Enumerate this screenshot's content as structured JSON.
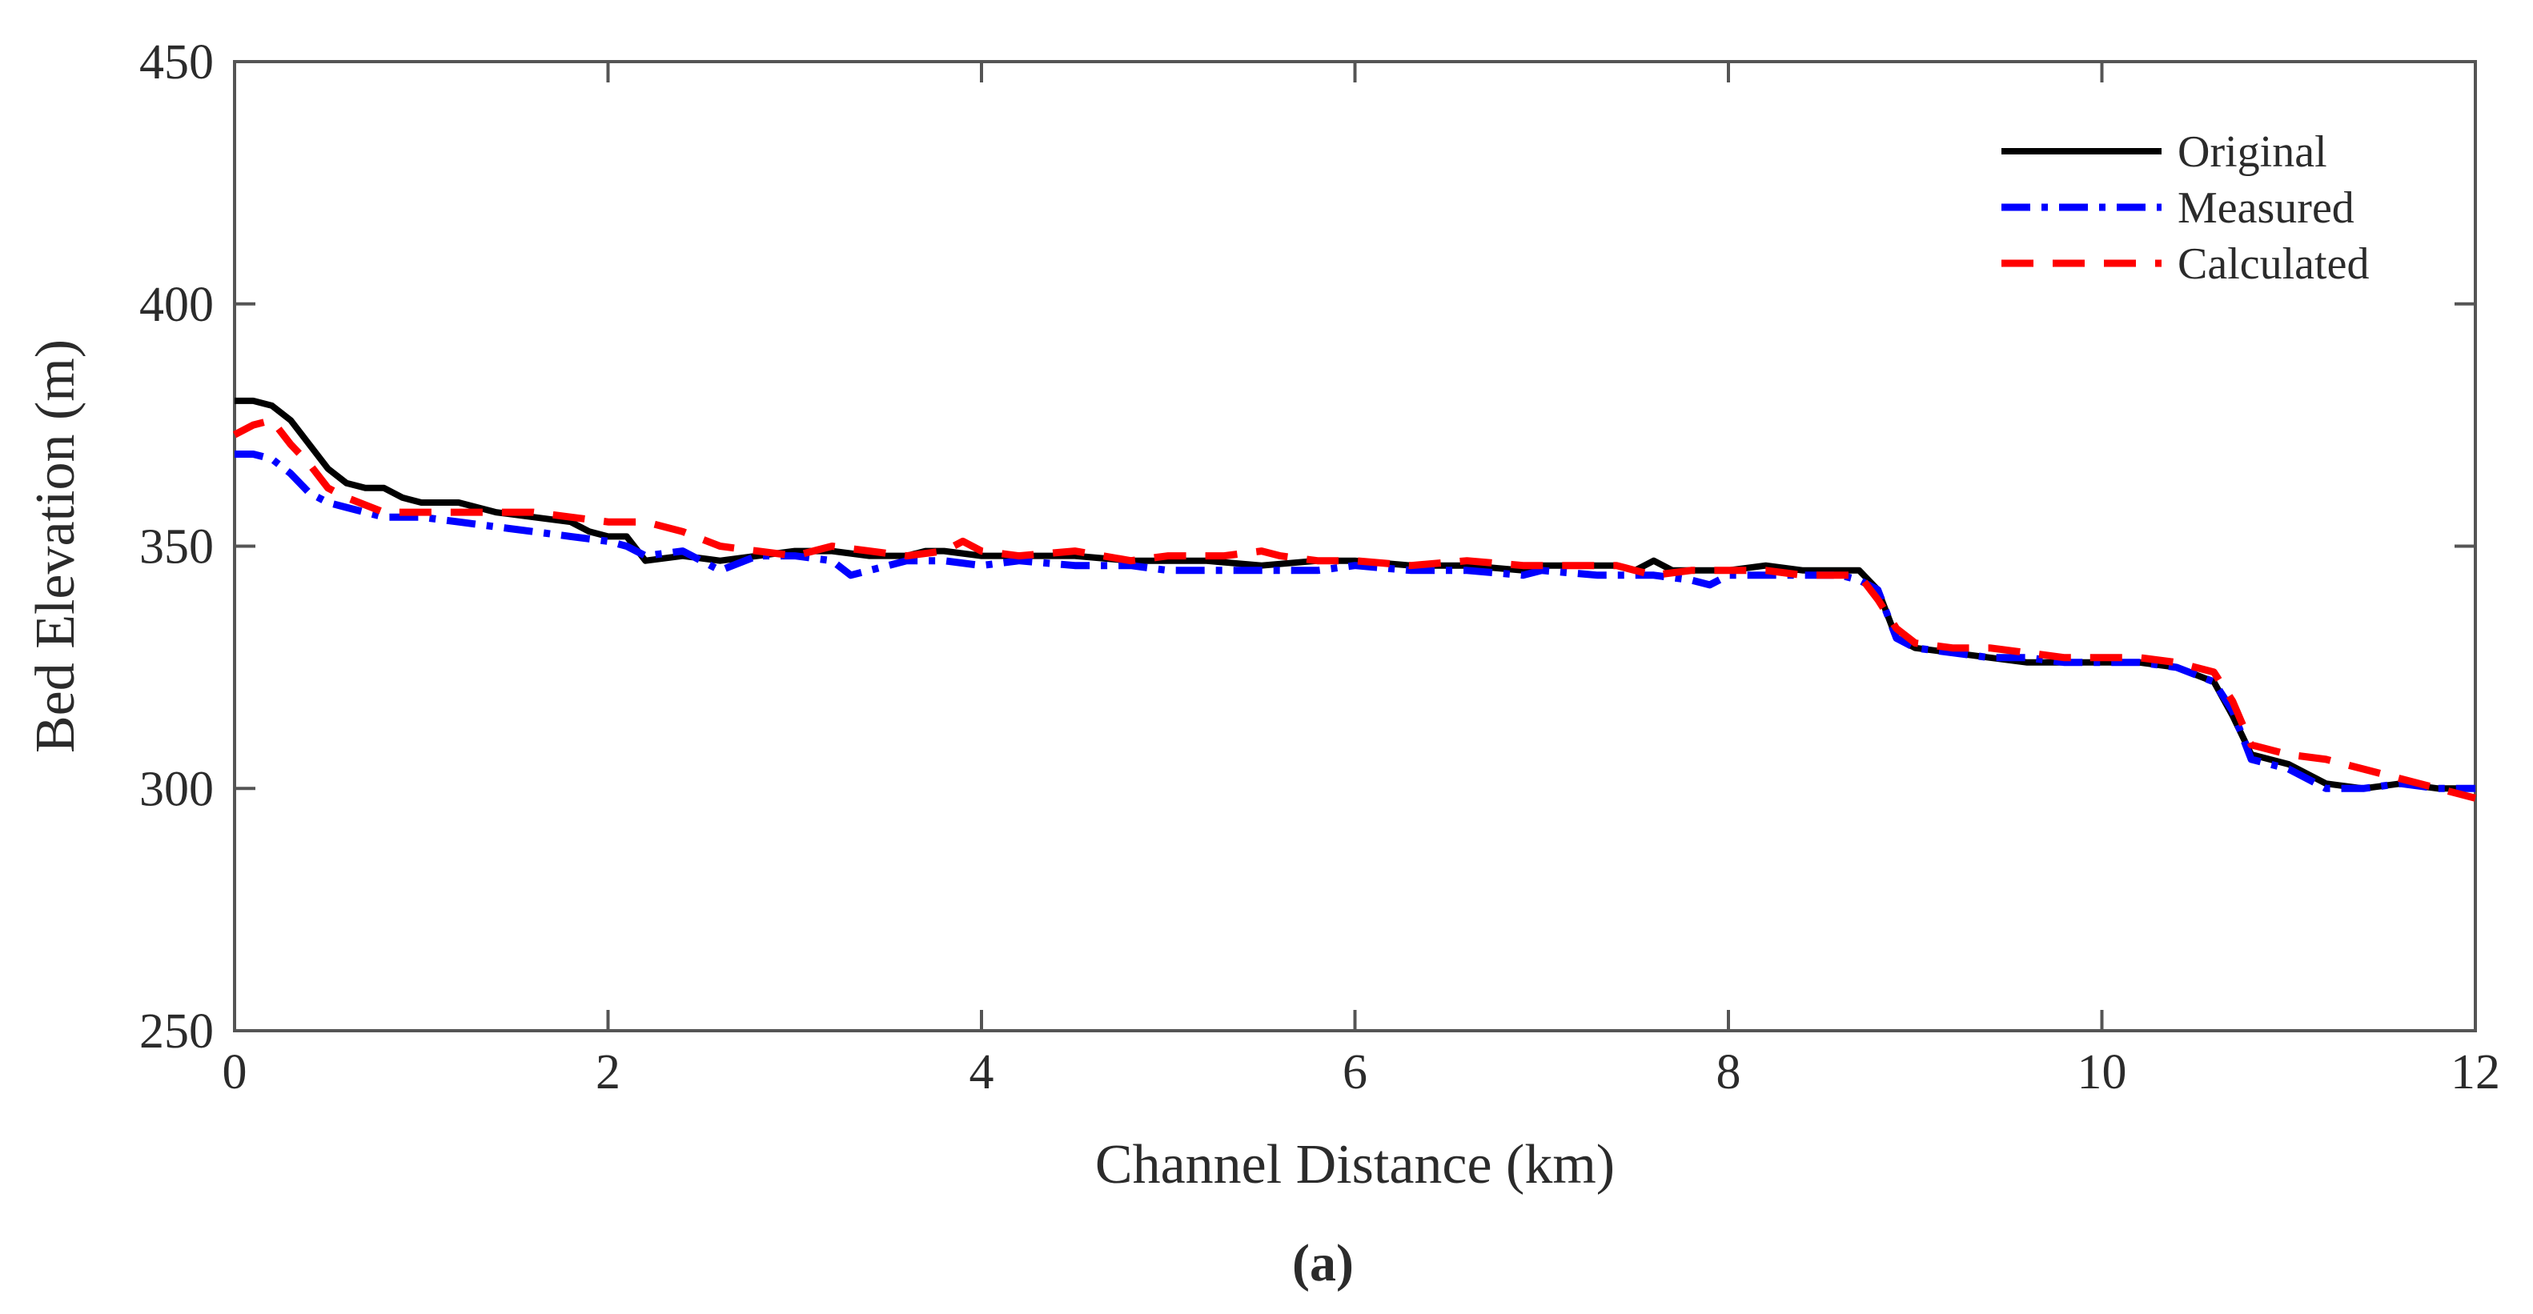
{
  "chart_data": {
    "type": "line",
    "title": "",
    "xlabel": "Channel Distance (km)",
    "ylabel": "Bed Elevation (m)",
    "xlim": [
      0,
      12
    ],
    "ylim": [
      250,
      450
    ],
    "xticks": [
      0,
      2,
      4,
      6,
      8,
      10,
      12
    ],
    "yticks": [
      250,
      300,
      350,
      400,
      450
    ],
    "xtick_labels": [
      "0",
      "2",
      "4",
      "6",
      "8",
      "10",
      "12"
    ],
    "ytick_labels": [
      "250",
      "300",
      "350",
      "400",
      "450"
    ],
    "grid": false,
    "legend_position": "top-right",
    "panel_label": "(a)",
    "series": [
      {
        "name": "Original",
        "color": "#000000",
        "style": "solid",
        "x": [
          0,
          0.1,
          0.2,
          0.3,
          0.4,
          0.5,
          0.6,
          0.7,
          0.8,
          0.9,
          1.0,
          1.2,
          1.4,
          1.6,
          1.8,
          1.9,
          2.0,
          2.1,
          2.2,
          2.4,
          2.6,
          2.8,
          3.0,
          3.2,
          3.4,
          3.6,
          3.7,
          3.8,
          4.0,
          4.2,
          4.5,
          4.8,
          5.0,
          5.2,
          5.5,
          5.8,
          6.0,
          6.3,
          6.6,
          6.9,
          7.0,
          7.2,
          7.4,
          7.5,
          7.6,
          7.7,
          7.8,
          8.0,
          8.2,
          8.4,
          8.6,
          8.7,
          8.8,
          8.9,
          9.0,
          9.2,
          9.4,
          9.6,
          9.8,
          10.0,
          10.2,
          10.4,
          10.6,
          10.7,
          10.8,
          11.0,
          11.2,
          11.4,
          11.6,
          11.8,
          12.0
        ],
        "y": [
          380,
          380,
          379,
          376,
          371,
          366,
          363,
          362,
          362,
          360,
          359,
          359,
          357,
          356,
          355,
          353,
          352,
          352,
          347,
          348,
          347,
          348,
          349,
          349,
          348,
          348,
          349,
          349,
          348,
          348,
          348,
          347,
          347,
          347,
          346,
          347,
          347,
          346,
          346,
          345,
          346,
          346,
          346,
          345,
          347,
          345,
          345,
          345,
          346,
          345,
          345,
          345,
          341,
          331,
          329,
          328,
          327,
          326,
          326,
          326,
          326,
          325,
          322,
          315,
          307,
          305,
          301,
          300,
          301,
          300,
          300
        ]
      },
      {
        "name": "Measured",
        "color": "#0000ff",
        "style": "dashdot",
        "x": [
          0,
          0.1,
          0.2,
          0.3,
          0.4,
          0.5,
          0.6,
          0.8,
          1.0,
          1.2,
          1.4,
          1.6,
          1.8,
          2.0,
          2.1,
          2.2,
          2.4,
          2.5,
          2.6,
          2.8,
          3.0,
          3.2,
          3.3,
          3.4,
          3.6,
          3.8,
          4.0,
          4.2,
          4.5,
          4.8,
          5.0,
          5.3,
          5.6,
          5.8,
          6.0,
          6.3,
          6.6,
          6.9,
          7.0,
          7.3,
          7.6,
          7.8,
          7.9,
          8.0,
          8.2,
          8.4,
          8.6,
          8.7,
          8.8,
          8.9,
          9.0,
          9.2,
          9.4,
          9.6,
          9.8,
          10.0,
          10.2,
          10.4,
          10.6,
          10.7,
          10.8,
          11.0,
          11.2,
          11.4,
          11.6,
          11.8,
          12.0
        ],
        "y": [
          369,
          369,
          368,
          365,
          361,
          359,
          358,
          356,
          356,
          355,
          354,
          353,
          352,
          351,
          350,
          348,
          349,
          347,
          345,
          348,
          348,
          347,
          344,
          345,
          347,
          347,
          346,
          347,
          346,
          346,
          345,
          345,
          345,
          345,
          346,
          345,
          345,
          344,
          345,
          344,
          344,
          343,
          342,
          344,
          344,
          344,
          344,
          343,
          341,
          331,
          329,
          328,
          327,
          327,
          326,
          326,
          326,
          325,
          322,
          316,
          306,
          304,
          300,
          300,
          301,
          300,
          300
        ]
      },
      {
        "name": "Calculated",
        "color": "#ff0000",
        "style": "dashed",
        "x": [
          0,
          0.1,
          0.2,
          0.3,
          0.4,
          0.5,
          0.6,
          0.8,
          1.0,
          1.2,
          1.4,
          1.6,
          1.8,
          2.0,
          2.2,
          2.4,
          2.6,
          2.8,
          3.0,
          3.2,
          3.4,
          3.6,
          3.8,
          3.9,
          4.0,
          4.2,
          4.5,
          4.8,
          5.0,
          5.3,
          5.5,
          5.6,
          5.8,
          6.0,
          6.3,
          6.6,
          6.9,
          7.0,
          7.2,
          7.4,
          7.5,
          7.6,
          7.8,
          8.0,
          8.2,
          8.4,
          8.6,
          8.7,
          8.8,
          8.9,
          9.0,
          9.2,
          9.4,
          9.6,
          9.8,
          10.0,
          10.2,
          10.4,
          10.6,
          10.7,
          10.8,
          11.0,
          11.2,
          11.4,
          11.6,
          11.8,
          12.0
        ],
        "y": [
          373,
          375,
          376,
          371,
          367,
          362,
          360,
          357,
          357,
          357,
          357,
          357,
          356,
          355,
          355,
          353,
          350,
          349,
          348,
          350,
          349,
          348,
          349,
          351,
          349,
          348,
          349,
          347,
          348,
          348,
          349,
          348,
          347,
          347,
          346,
          347,
          346,
          346,
          346,
          346,
          345,
          344,
          345,
          345,
          345,
          344,
          344,
          344,
          339,
          333,
          330,
          329,
          329,
          328,
          327,
          327,
          327,
          326,
          324,
          318,
          309,
          307,
          306,
          304,
          302,
          300,
          298
        ]
      }
    ]
  }
}
